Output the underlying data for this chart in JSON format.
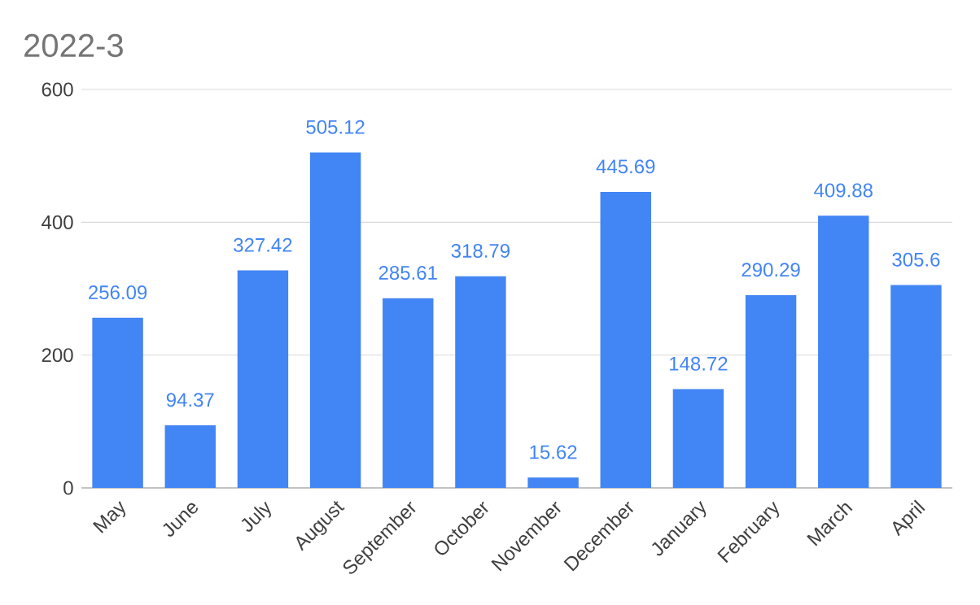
{
  "chart_data": {
    "type": "bar",
    "title": "2022-3",
    "categories": [
      "May",
      "June",
      "July",
      "August",
      "September",
      "October",
      "November",
      "December",
      "January",
      "February",
      "March",
      "April"
    ],
    "values": [
      256.09,
      94.37,
      327.42,
      505.12,
      285.61,
      318.79,
      15.62,
      445.69,
      148.72,
      290.29,
      409.88,
      305.6
    ],
    "color": "#4285f4",
    "ylim": [
      0,
      600
    ],
    "yticks": [
      0,
      200,
      400,
      600
    ],
    "grid": "y",
    "data_labels": true
  }
}
